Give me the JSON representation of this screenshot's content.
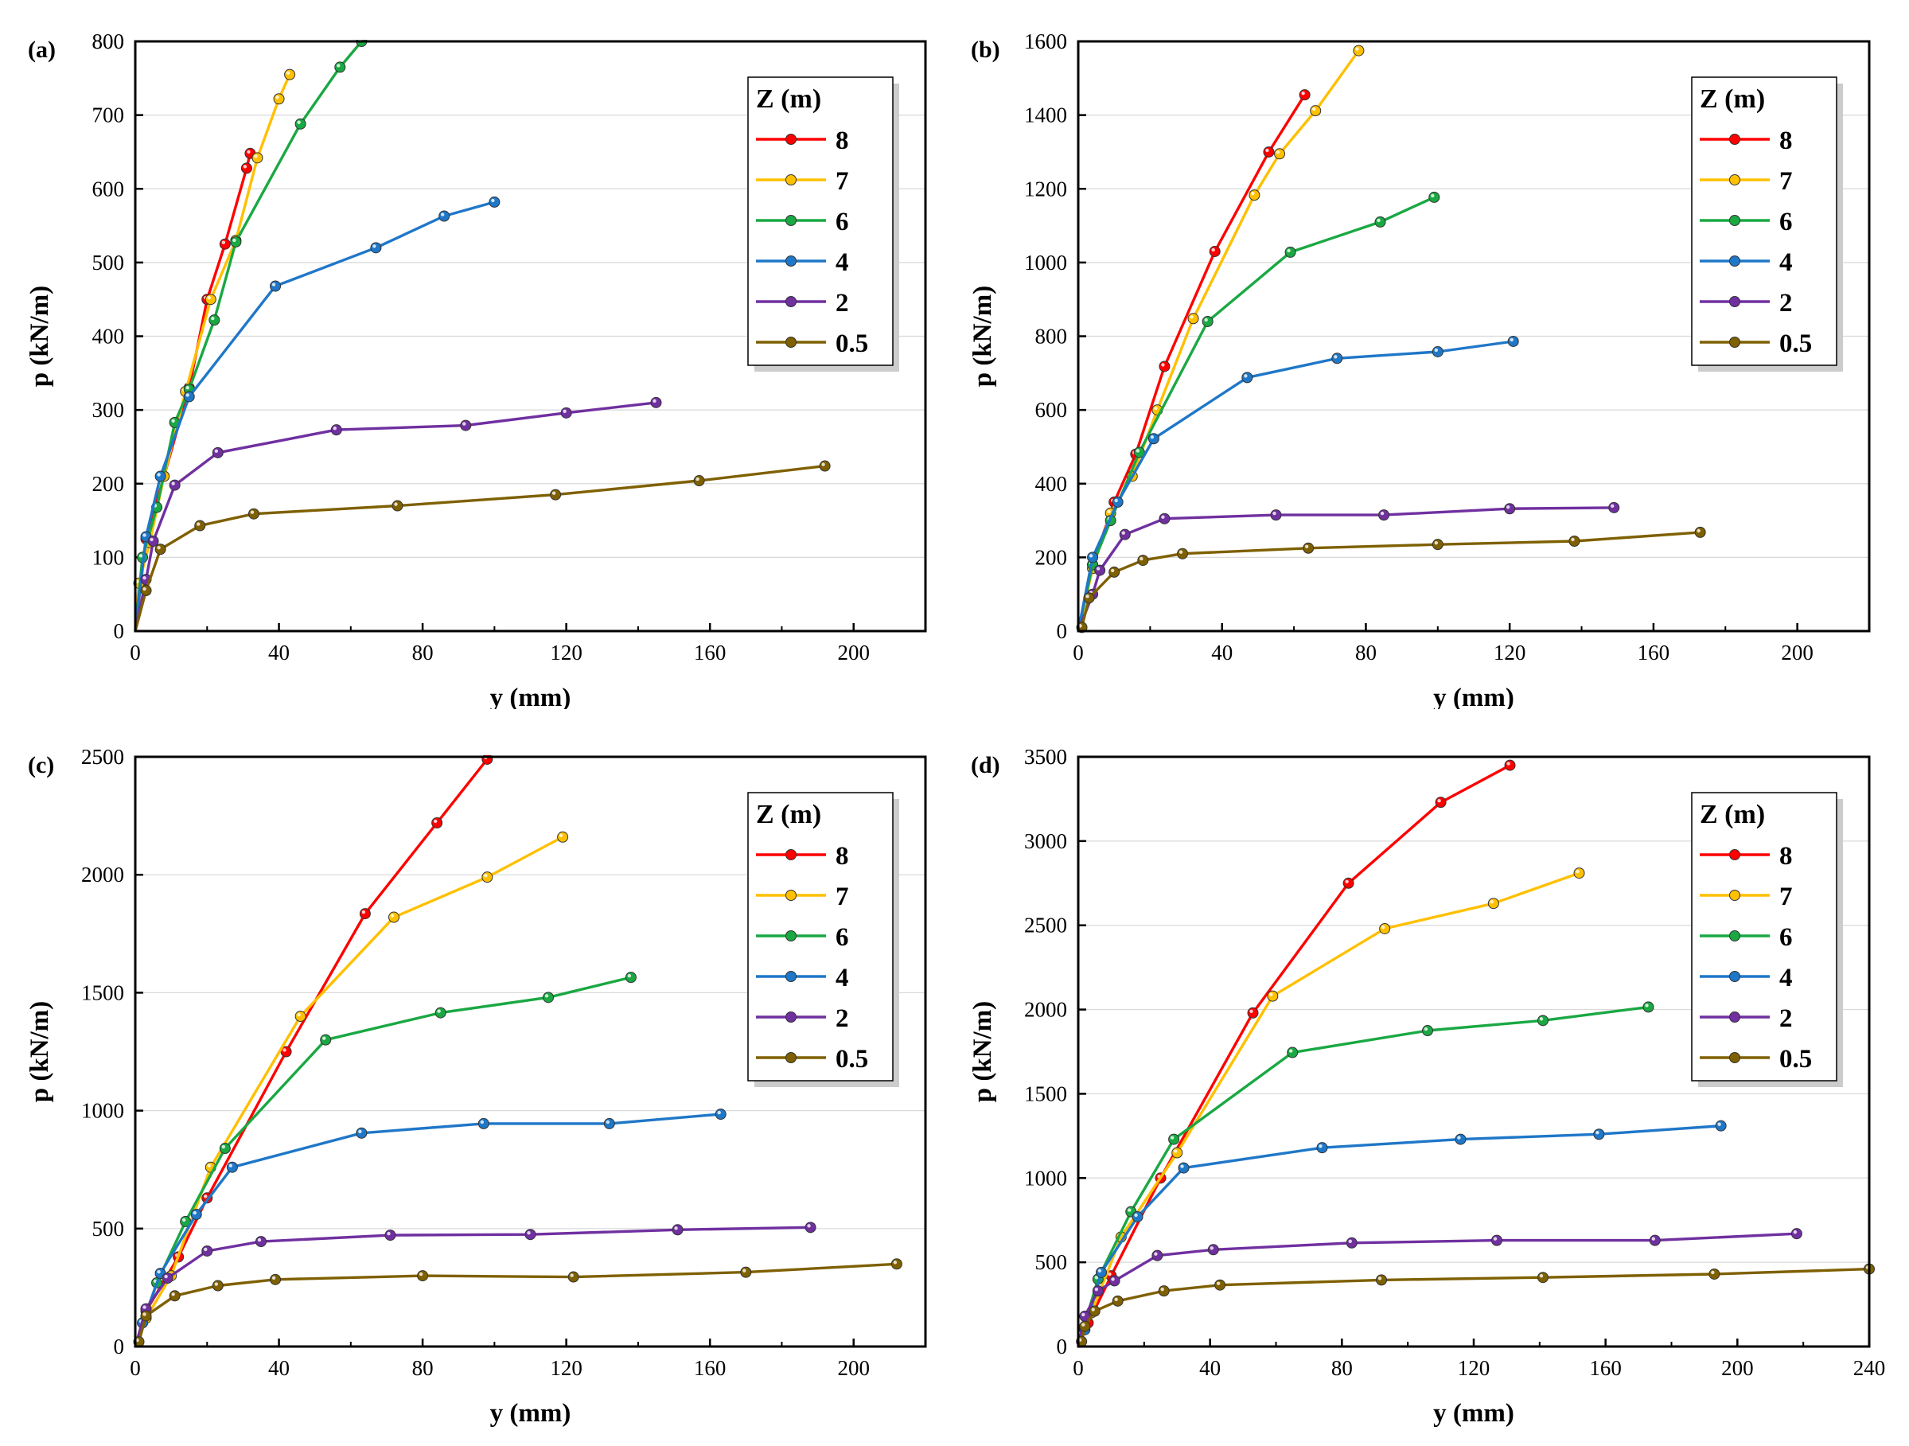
{
  "chart_data": [
    {
      "panel": "(a)",
      "type": "line",
      "xlabel": "y (mm)",
      "ylabel": "p (kN/m)",
      "xlim": [
        0,
        220
      ],
      "ylim": [
        0,
        800
      ],
      "xticks": [
        0,
        40,
        80,
        120,
        160,
        200
      ],
      "yticks": [
        0,
        100,
        200,
        300,
        400,
        500,
        600,
        700,
        800
      ],
      "legend_title": "Z (m)",
      "series": [
        {
          "name": "8",
          "color": "#ff0000",
          "points": [
            [
              0,
              0
            ],
            [
              3,
              125
            ],
            [
              8,
              210
            ],
            [
              15,
              330
            ],
            [
              20,
              450
            ],
            [
              25,
              525
            ],
            [
              31,
              628
            ],
            [
              32,
              648
            ]
          ]
        },
        {
          "name": "7",
          "color": "#ffc000",
          "points": [
            [
              0,
              0
            ],
            [
              1,
              65
            ],
            [
              4,
              120
            ],
            [
              8,
              210
            ],
            [
              14,
              325
            ],
            [
              21,
              450
            ],
            [
              28,
              530
            ],
            [
              34,
              642
            ],
            [
              40,
              722
            ],
            [
              43,
              755
            ]
          ]
        },
        {
          "name": "6",
          "color": "#1aa843",
          "points": [
            [
              0,
              0
            ],
            [
              2,
              100
            ],
            [
              6,
              168
            ],
            [
              11,
              283
            ],
            [
              15,
              328
            ],
            [
              22,
              422
            ],
            [
              28,
              528
            ],
            [
              46,
              688
            ],
            [
              57,
              765
            ],
            [
              63,
              800
            ]
          ]
        },
        {
          "name": "4",
          "color": "#1f77c8",
          "points": [
            [
              0,
              0
            ],
            [
              3,
              128
            ],
            [
              7,
              210
            ],
            [
              15,
              318
            ],
            [
              39,
              468
            ],
            [
              67,
              520
            ],
            [
              86,
              563
            ],
            [
              100,
              582
            ]
          ]
        },
        {
          "name": "2",
          "color": "#7030a0",
          "points": [
            [
              0,
              0
            ],
            [
              3,
              70
            ],
            [
              5,
              122
            ],
            [
              11,
              198
            ],
            [
              23,
              242
            ],
            [
              56,
              273
            ],
            [
              92,
              279
            ],
            [
              120,
              296
            ],
            [
              145,
              310
            ]
          ]
        },
        {
          "name": "0.5",
          "color": "#7f6000",
          "points": [
            [
              0,
              0
            ],
            [
              3,
              55
            ],
            [
              7,
              111
            ],
            [
              18,
              143
            ],
            [
              33,
              159
            ],
            [
              73,
              170
            ],
            [
              117,
              185
            ],
            [
              157,
              204
            ],
            [
              192,
              224
            ]
          ]
        }
      ]
    },
    {
      "panel": "(b)",
      "type": "line",
      "xlabel": "y (mm)",
      "ylabel": "p (kN/m)",
      "xlim": [
        0,
        220
      ],
      "ylim": [
        0,
        1600
      ],
      "xticks": [
        0,
        40,
        80,
        120,
        160,
        200
      ],
      "yticks": [
        0,
        200,
        400,
        600,
        800,
        1000,
        1200,
        1400,
        1600
      ],
      "legend_title": "Z (m)",
      "series": [
        {
          "name": "8",
          "color": "#ff0000",
          "points": [
            [
              0,
              0
            ],
            [
              4,
              180
            ],
            [
              10,
              350
            ],
            [
              16,
              480
            ],
            [
              24,
              718
            ],
            [
              38,
              1030
            ],
            [
              53,
              1300
            ],
            [
              63,
              1455
            ]
          ]
        },
        {
          "name": "7",
          "color": "#ffc000",
          "points": [
            [
              0,
              0
            ],
            [
              4,
              170
            ],
            [
              9,
              320
            ],
            [
              15,
              420
            ],
            [
              22,
              600
            ],
            [
              32,
              848
            ],
            [
              49,
              1183
            ],
            [
              56,
              1295
            ],
            [
              66,
              1412
            ],
            [
              78,
              1575
            ]
          ]
        },
        {
          "name": "6",
          "color": "#1aa843",
          "points": [
            [
              0,
              0
            ],
            [
              4,
              180
            ],
            [
              9,
              300
            ],
            [
              17,
              485
            ],
            [
              36,
              840
            ],
            [
              59,
              1028
            ],
            [
              84,
              1110
            ],
            [
              99,
              1177
            ]
          ]
        },
        {
          "name": "4",
          "color": "#1f77c8",
          "points": [
            [
              0,
              0
            ],
            [
              4,
              200
            ],
            [
              11,
              350
            ],
            [
              21,
              522
            ],
            [
              47,
              688
            ],
            [
              72,
              740
            ],
            [
              100,
              758
            ],
            [
              121,
              786
            ]
          ]
        },
        {
          "name": "2",
          "color": "#7030a0",
          "points": [
            [
              0,
              0
            ],
            [
              4,
              100
            ],
            [
              6,
              165
            ],
            [
              13,
              262
            ],
            [
              24,
              305
            ],
            [
              55,
              315
            ],
            [
              85,
              315
            ],
            [
              120,
              332
            ],
            [
              149,
              335
            ]
          ]
        },
        {
          "name": "0.5",
          "color": "#7f6000",
          "points": [
            [
              0,
              0
            ],
            [
              1,
              10
            ],
            [
              3,
              90
            ],
            [
              10,
              160
            ],
            [
              18,
              192
            ],
            [
              29,
              210
            ],
            [
              64,
              225
            ],
            [
              100,
              235
            ],
            [
              138,
              244
            ],
            [
              173,
              268
            ]
          ]
        }
      ]
    },
    {
      "panel": "(c)",
      "type": "line",
      "xlabel": "y (mm)",
      "ylabel": "p (kN/m)",
      "xlim": [
        0,
        220
      ],
      "ylim": [
        0,
        2500
      ],
      "xticks": [
        0,
        40,
        80,
        120,
        160,
        200
      ],
      "yticks": [
        0,
        500,
        1000,
        1500,
        2000,
        2500
      ],
      "legend_title": "Z (m)",
      "series": [
        {
          "name": "8",
          "color": "#ff0000",
          "points": [
            [
              0,
              0
            ],
            [
              3,
              150
            ],
            [
              12,
              380
            ],
            [
              20,
              630
            ],
            [
              42,
              1250
            ],
            [
              64,
              1835
            ],
            [
              84,
              2220
            ],
            [
              98,
              2490
            ]
          ]
        },
        {
          "name": "7",
          "color": "#ffc000",
          "points": [
            [
              0,
              0
            ],
            [
              3,
              120
            ],
            [
              10,
              300
            ],
            [
              21,
              760
            ],
            [
              46,
              1400
            ],
            [
              72,
              1820
            ],
            [
              98,
              1990
            ],
            [
              119,
              2160
            ]
          ]
        },
        {
          "name": "6",
          "color": "#1aa843",
          "points": [
            [
              0,
              0
            ],
            [
              6,
              270
            ],
            [
              14,
              530
            ],
            [
              25,
              840
            ],
            [
              53,
              1300
            ],
            [
              85,
              1415
            ],
            [
              115,
              1480
            ],
            [
              138,
              1565
            ]
          ]
        },
        {
          "name": "4",
          "color": "#1f77c8",
          "points": [
            [
              0,
              0
            ],
            [
              2,
              100
            ],
            [
              7,
              310
            ],
            [
              17,
              560
            ],
            [
              27,
              760
            ],
            [
              63,
              905
            ],
            [
              97,
              945
            ],
            [
              132,
              945
            ],
            [
              163,
              985
            ]
          ]
        },
        {
          "name": "2",
          "color": "#7030a0",
          "points": [
            [
              0,
              0
            ],
            [
              3,
              160
            ],
            [
              9,
              290
            ],
            [
              20,
              405
            ],
            [
              35,
              445
            ],
            [
              71,
              472
            ],
            [
              110,
              475
            ],
            [
              151,
              495
            ],
            [
              188,
              505
            ]
          ]
        },
        {
          "name": "0.5",
          "color": "#7f6000",
          "points": [
            [
              0,
              0
            ],
            [
              1,
              20
            ],
            [
              3,
              130
            ],
            [
              11,
              215
            ],
            [
              23,
              258
            ],
            [
              39,
              284
            ],
            [
              80,
              300
            ],
            [
              122,
              295
            ],
            [
              170,
              315
            ],
            [
              212,
              350
            ]
          ]
        }
      ]
    },
    {
      "panel": "(d)",
      "type": "line",
      "xlabel": "y (mm)",
      "ylabel": "p (kN/m)",
      "xlim": [
        0,
        240
      ],
      "ylim": [
        0,
        3500
      ],
      "xticks": [
        0,
        40,
        80,
        120,
        160,
        200,
        240
      ],
      "yticks": [
        0,
        500,
        1000,
        1500,
        2000,
        2500,
        3000,
        3500
      ],
      "legend_title": "Z (m)",
      "series": [
        {
          "name": "8",
          "color": "#ff0000",
          "points": [
            [
              0,
              0
            ],
            [
              3,
              140
            ],
            [
              10,
              420
            ],
            [
              25,
              1000
            ],
            [
              53,
              1980
            ],
            [
              82,
              2750
            ],
            [
              110,
              3230
            ],
            [
              131,
              3450
            ]
          ]
        },
        {
          "name": "7",
          "color": "#ffc000",
          "points": [
            [
              0,
              0
            ],
            [
              4,
              200
            ],
            [
              13,
              650
            ],
            [
              30,
              1150
            ],
            [
              59,
              2080
            ],
            [
              93,
              2480
            ],
            [
              126,
              2630
            ],
            [
              152,
              2810
            ]
          ]
        },
        {
          "name": "6",
          "color": "#1aa843",
          "points": [
            [
              0,
              0
            ],
            [
              6,
              400
            ],
            [
              16,
              800
            ],
            [
              29,
              1230
            ],
            [
              65,
              1745
            ],
            [
              106,
              1875
            ],
            [
              141,
              1935
            ],
            [
              173,
              2015
            ]
          ]
        },
        {
          "name": "4",
          "color": "#1f77c8",
          "points": [
            [
              0,
              0
            ],
            [
              2,
              100
            ],
            [
              7,
              440
            ],
            [
              18,
              770
            ],
            [
              32,
              1060
            ],
            [
              74,
              1180
            ],
            [
              116,
              1230
            ],
            [
              158,
              1260
            ],
            [
              195,
              1310
            ]
          ]
        },
        {
          "name": "2",
          "color": "#7030a0",
          "points": [
            [
              0,
              0
            ],
            [
              2,
              180
            ],
            [
              6,
              330
            ],
            [
              11,
              390
            ],
            [
              24,
              540
            ],
            [
              41,
              575
            ],
            [
              83,
              615
            ],
            [
              127,
              630
            ],
            [
              175,
              630
            ],
            [
              218,
              670
            ]
          ]
        },
        {
          "name": "0.5",
          "color": "#7f6000",
          "points": [
            [
              0,
              0
            ],
            [
              1,
              30
            ],
            [
              2,
              120
            ],
            [
              5,
              210
            ],
            [
              12,
              270
            ],
            [
              26,
              330
            ],
            [
              43,
              365
            ],
            [
              92,
              395
            ],
            [
              141,
              410
            ],
            [
              193,
              430
            ],
            [
              240,
              460
            ]
          ]
        }
      ]
    }
  ]
}
